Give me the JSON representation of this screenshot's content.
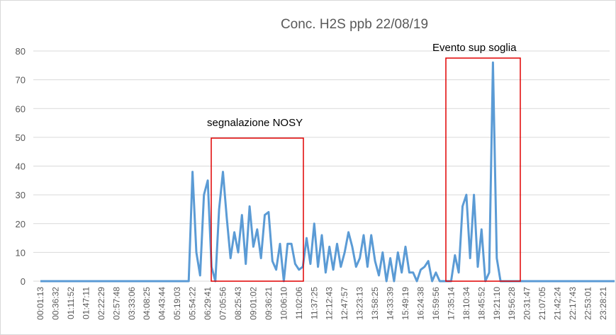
{
  "chart_data": {
    "type": "line",
    "title": "Conc. H2S ppb 22/08/19",
    "categories": [
      "00:01:13",
      null,
      null,
      null,
      "00:36:32",
      null,
      null,
      null,
      "01:11:52",
      null,
      null,
      null,
      "01:47:11",
      null,
      null,
      null,
      "02:22:29",
      null,
      null,
      null,
      "02:57:48",
      null,
      null,
      null,
      "03:33:06",
      null,
      null,
      null,
      "04:08:25",
      null,
      null,
      null,
      "04:43:44",
      null,
      null,
      null,
      "05:19:03",
      null,
      null,
      null,
      "05:54:22",
      null,
      null,
      null,
      "06:29:41",
      null,
      null,
      null,
      "07:05:56",
      null,
      null,
      null,
      "08:25:43",
      null,
      null,
      null,
      "09:01:02",
      null,
      null,
      null,
      "09:36:21",
      null,
      null,
      null,
      "10:06:10",
      null,
      null,
      null,
      "11:02:06",
      null,
      null,
      null,
      "11:37:25",
      null,
      null,
      null,
      "12:12:43",
      null,
      null,
      null,
      "12:47:57",
      null,
      null,
      null,
      "13:23:13",
      null,
      null,
      null,
      "13:58:25",
      null,
      null,
      null,
      "14:33:39",
      null,
      null,
      null,
      "15:49:19",
      null,
      null,
      null,
      "16:24:38",
      null,
      null,
      null,
      "16:59:56",
      null,
      null,
      null,
      "17:35:14",
      null,
      null,
      null,
      "18:10:34",
      null,
      null,
      null,
      "18:45:52",
      null,
      null,
      null,
      "19:21:10",
      null,
      null,
      null,
      "19:56:28",
      null,
      null,
      null,
      "20:31:47",
      null,
      null,
      null,
      "21:07:05",
      null,
      null,
      null,
      "21:42:24",
      null,
      null,
      null,
      "22:17:43",
      null,
      null,
      null,
      "22:53:01",
      null,
      null,
      null,
      "23:28:21",
      null,
      null,
      null
    ],
    "series": [
      {
        "name": "Conc. H2S ppb",
        "color": "#5b9bd5",
        "values": [
          0,
          0,
          0,
          0,
          0,
          0,
          0,
          0,
          0,
          0,
          0,
          0,
          0,
          0,
          0,
          0,
          0,
          0,
          0,
          0,
          0,
          0,
          0,
          0,
          0,
          0,
          0,
          0,
          0,
          0,
          0,
          0,
          0,
          0,
          0,
          0,
          0,
          0,
          0,
          0,
          38,
          10,
          2,
          30,
          35,
          5,
          0,
          25,
          38,
          22,
          8,
          17,
          10,
          23,
          6,
          26,
          12,
          18,
          8,
          23,
          24,
          7,
          4,
          13,
          0,
          13,
          13,
          6,
          4,
          5,
          15,
          6,
          20,
          5,
          16,
          3,
          12,
          4,
          13,
          5,
          10,
          17,
          12,
          5,
          8,
          16,
          5,
          16,
          7,
          2,
          10,
          0,
          8,
          0,
          10,
          3,
          12,
          3,
          3,
          0,
          4,
          5,
          7,
          0,
          3,
          0,
          0,
          0,
          0,
          9,
          3,
          26,
          30,
          8,
          30,
          5,
          18,
          0,
          3,
          76,
          8,
          0,
          0,
          0,
          0,
          0,
          0,
          0,
          0,
          0,
          0,
          0,
          0,
          0,
          0,
          0,
          0,
          0,
          0,
          0,
          0,
          0,
          0,
          0,
          0,
          0,
          0,
          0,
          0,
          0,
          0,
          0
        ]
      }
    ],
    "ylim": [
      0,
      80
    ],
    "yticks": [
      0,
      10,
      20,
      30,
      40,
      50,
      60,
      70,
      80
    ],
    "grid": true,
    "annotations": [
      {
        "text": "segnalazione NOSY"
      },
      {
        "text": "Evento sup soglia"
      }
    ]
  }
}
